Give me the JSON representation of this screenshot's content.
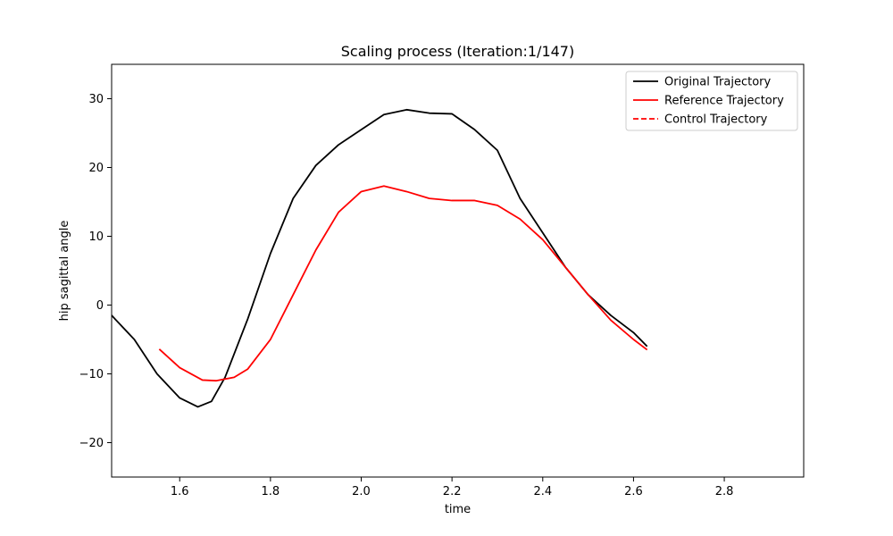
{
  "chart_data": {
    "type": "line",
    "title": "Scaling process (Iteration:1/147)",
    "xlabel": "time",
    "ylabel": "hip sagittal angle",
    "xlim": [
      1.45,
      2.975
    ],
    "ylim": [
      -25,
      35
    ],
    "xticks": [
      1.6,
      1.8,
      2.0,
      2.2,
      2.4,
      2.6,
      2.8
    ],
    "yticks": [
      -20,
      -10,
      0,
      10,
      20,
      30
    ],
    "xtick_labels": [
      "1.6",
      "1.8",
      "2.0",
      "2.2",
      "2.4",
      "2.6",
      "2.8"
    ],
    "ytick_labels": [
      "−20",
      "−10",
      "0",
      "10",
      "20",
      "30"
    ],
    "grid": false,
    "legend_position": "top-right",
    "series": [
      {
        "name": "Original Trajectory",
        "color": "#000000",
        "style": "solid",
        "x": [
          1.45,
          1.5,
          1.55,
          1.6,
          1.64,
          1.67,
          1.7,
          1.75,
          1.8,
          1.85,
          1.9,
          1.95,
          2.0,
          2.05,
          2.1,
          2.15,
          2.2,
          2.25,
          2.3,
          2.35,
          2.4,
          2.45,
          2.5,
          2.55,
          2.6,
          2.63
        ],
        "y": [
          -1.5,
          -5.0,
          -10.0,
          -13.5,
          -14.8,
          -14.0,
          -10.5,
          -2.0,
          7.5,
          15.5,
          20.3,
          23.3,
          25.5,
          27.7,
          28.4,
          27.9,
          27.8,
          25.5,
          22.5,
          15.5,
          10.5,
          5.5,
          1.5,
          -1.5,
          -4.0,
          -6.0
        ]
      },
      {
        "name": "Reference Trajectory",
        "color": "#ff0000",
        "style": "solid",
        "x": [
          1.555,
          1.6,
          1.65,
          1.68,
          1.72,
          1.75,
          1.8,
          1.85,
          1.9,
          1.95,
          2.0,
          2.05,
          2.1,
          2.15,
          2.2,
          2.25,
          2.3,
          2.35,
          2.4,
          2.45,
          2.5,
          2.55,
          2.6,
          2.63
        ],
        "y": [
          -6.4,
          -9.1,
          -10.9,
          -11.0,
          -10.5,
          -9.3,
          -5.0,
          1.5,
          8.0,
          13.5,
          16.5,
          17.3,
          16.5,
          15.5,
          15.2,
          15.2,
          14.5,
          12.5,
          9.5,
          5.5,
          1.5,
          -2.2,
          -5.0,
          -6.5
        ]
      },
      {
        "name": "Control Trajectory",
        "color": "#ff0000",
        "style": "dashed",
        "x": [],
        "y": []
      }
    ]
  }
}
